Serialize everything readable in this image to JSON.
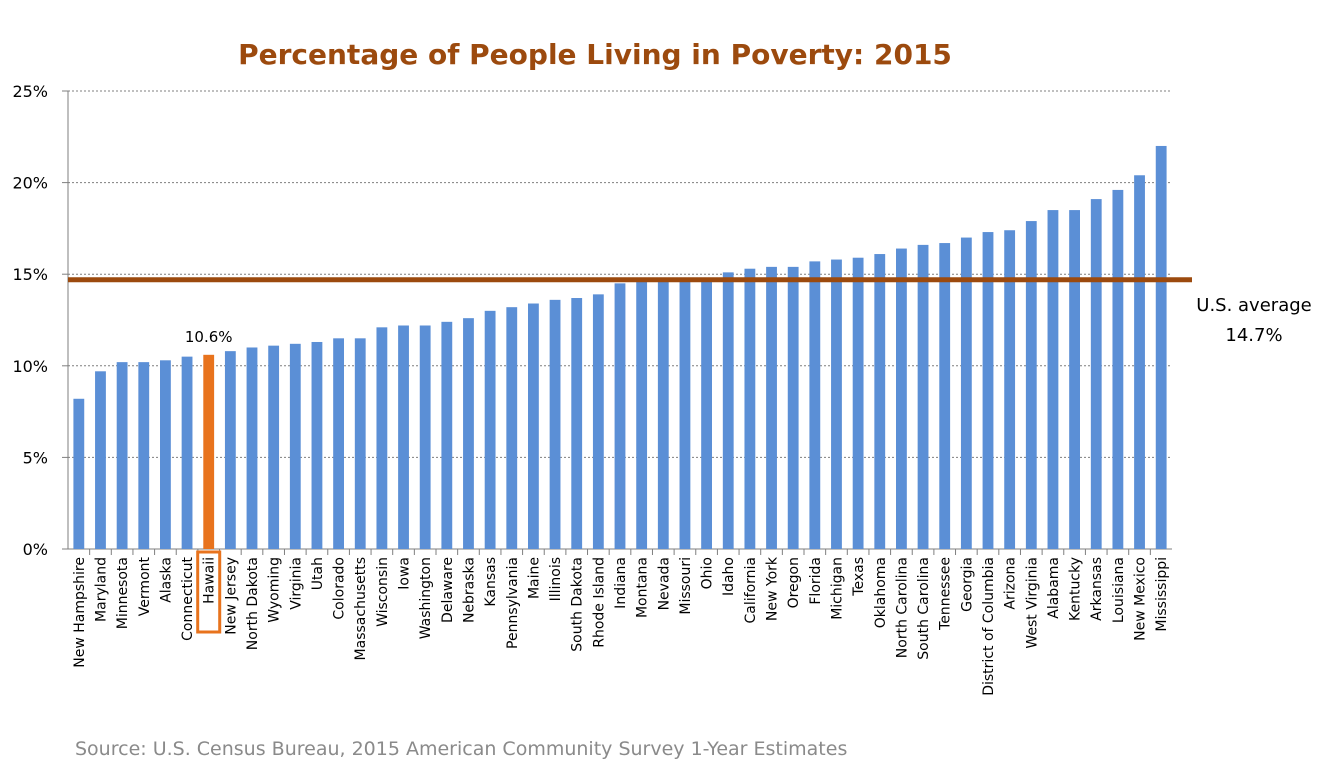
{
  "chart_data": {
    "type": "bar",
    "title": "Percentage of People Living in Poverty: 2015",
    "source": "Source: U.S. Census Bureau, 2015 American Community Survey 1-Year Estimates",
    "ylim": [
      0,
      25
    ],
    "yticks": [
      {
        "value": 0,
        "label": "0%"
      },
      {
        "value": 5,
        "label": "5%"
      },
      {
        "value": 10,
        "label": "10%"
      },
      {
        "value": 15,
        "label": "15%"
      },
      {
        "value": 20,
        "label": "20%"
      },
      {
        "value": 25,
        "label": "25%"
      }
    ],
    "grid": true,
    "categories": [
      "New Hampshire",
      "Maryland",
      "Minnesota",
      "Vermont",
      "Alaska",
      "Connecticut",
      "Hawaii",
      "New Jersey",
      "North Dakota",
      "Wyoming",
      "Virginia",
      "Utah",
      "Colorado",
      "Massachusetts",
      "Wisconsin",
      "Iowa",
      "Washington",
      "Delaware",
      "Nebraska",
      "Kansas",
      "Pennsylvania",
      "Maine",
      "Illinois",
      "South Dakota",
      "Rhode Island",
      "Indiana",
      "Montana",
      "Nevada",
      "Missouri",
      "Ohio",
      "Idaho",
      "California",
      "New York",
      "Oregon",
      "Florida",
      "Michigan",
      "Texas",
      "Oklahoma",
      "North Carolina",
      "South Carolina",
      "Tennessee",
      "Georgia",
      "District of Columbia",
      "Arizona",
      "West Virginia",
      "Alabama",
      "Kentucky",
      "Arkansas",
      "Louisiana",
      "New Mexico",
      "Mississippi"
    ],
    "values": [
      8.2,
      9.7,
      10.2,
      10.2,
      10.3,
      10.5,
      10.6,
      10.8,
      11.0,
      11.1,
      11.2,
      11.3,
      11.5,
      11.5,
      12.1,
      12.2,
      12.2,
      12.4,
      12.6,
      13.0,
      13.2,
      13.4,
      13.6,
      13.7,
      13.9,
      14.5,
      14.6,
      14.7,
      14.8,
      14.8,
      15.1,
      15.3,
      15.4,
      15.4,
      15.7,
      15.8,
      15.9,
      16.1,
      16.4,
      16.6,
      16.7,
      17.0,
      17.3,
      17.4,
      17.9,
      18.5,
      18.5,
      19.1,
      19.6,
      20.4,
      22.0
    ],
    "highlight": {
      "category": "Hawaii",
      "label": "10.6%",
      "color": "#e8731d"
    },
    "bar_color": "#5b8fd6",
    "reference_line": {
      "value": 14.7,
      "label_line1": "U.S. average",
      "label_line2": "14.7%",
      "color": "#9c4a0e"
    }
  }
}
